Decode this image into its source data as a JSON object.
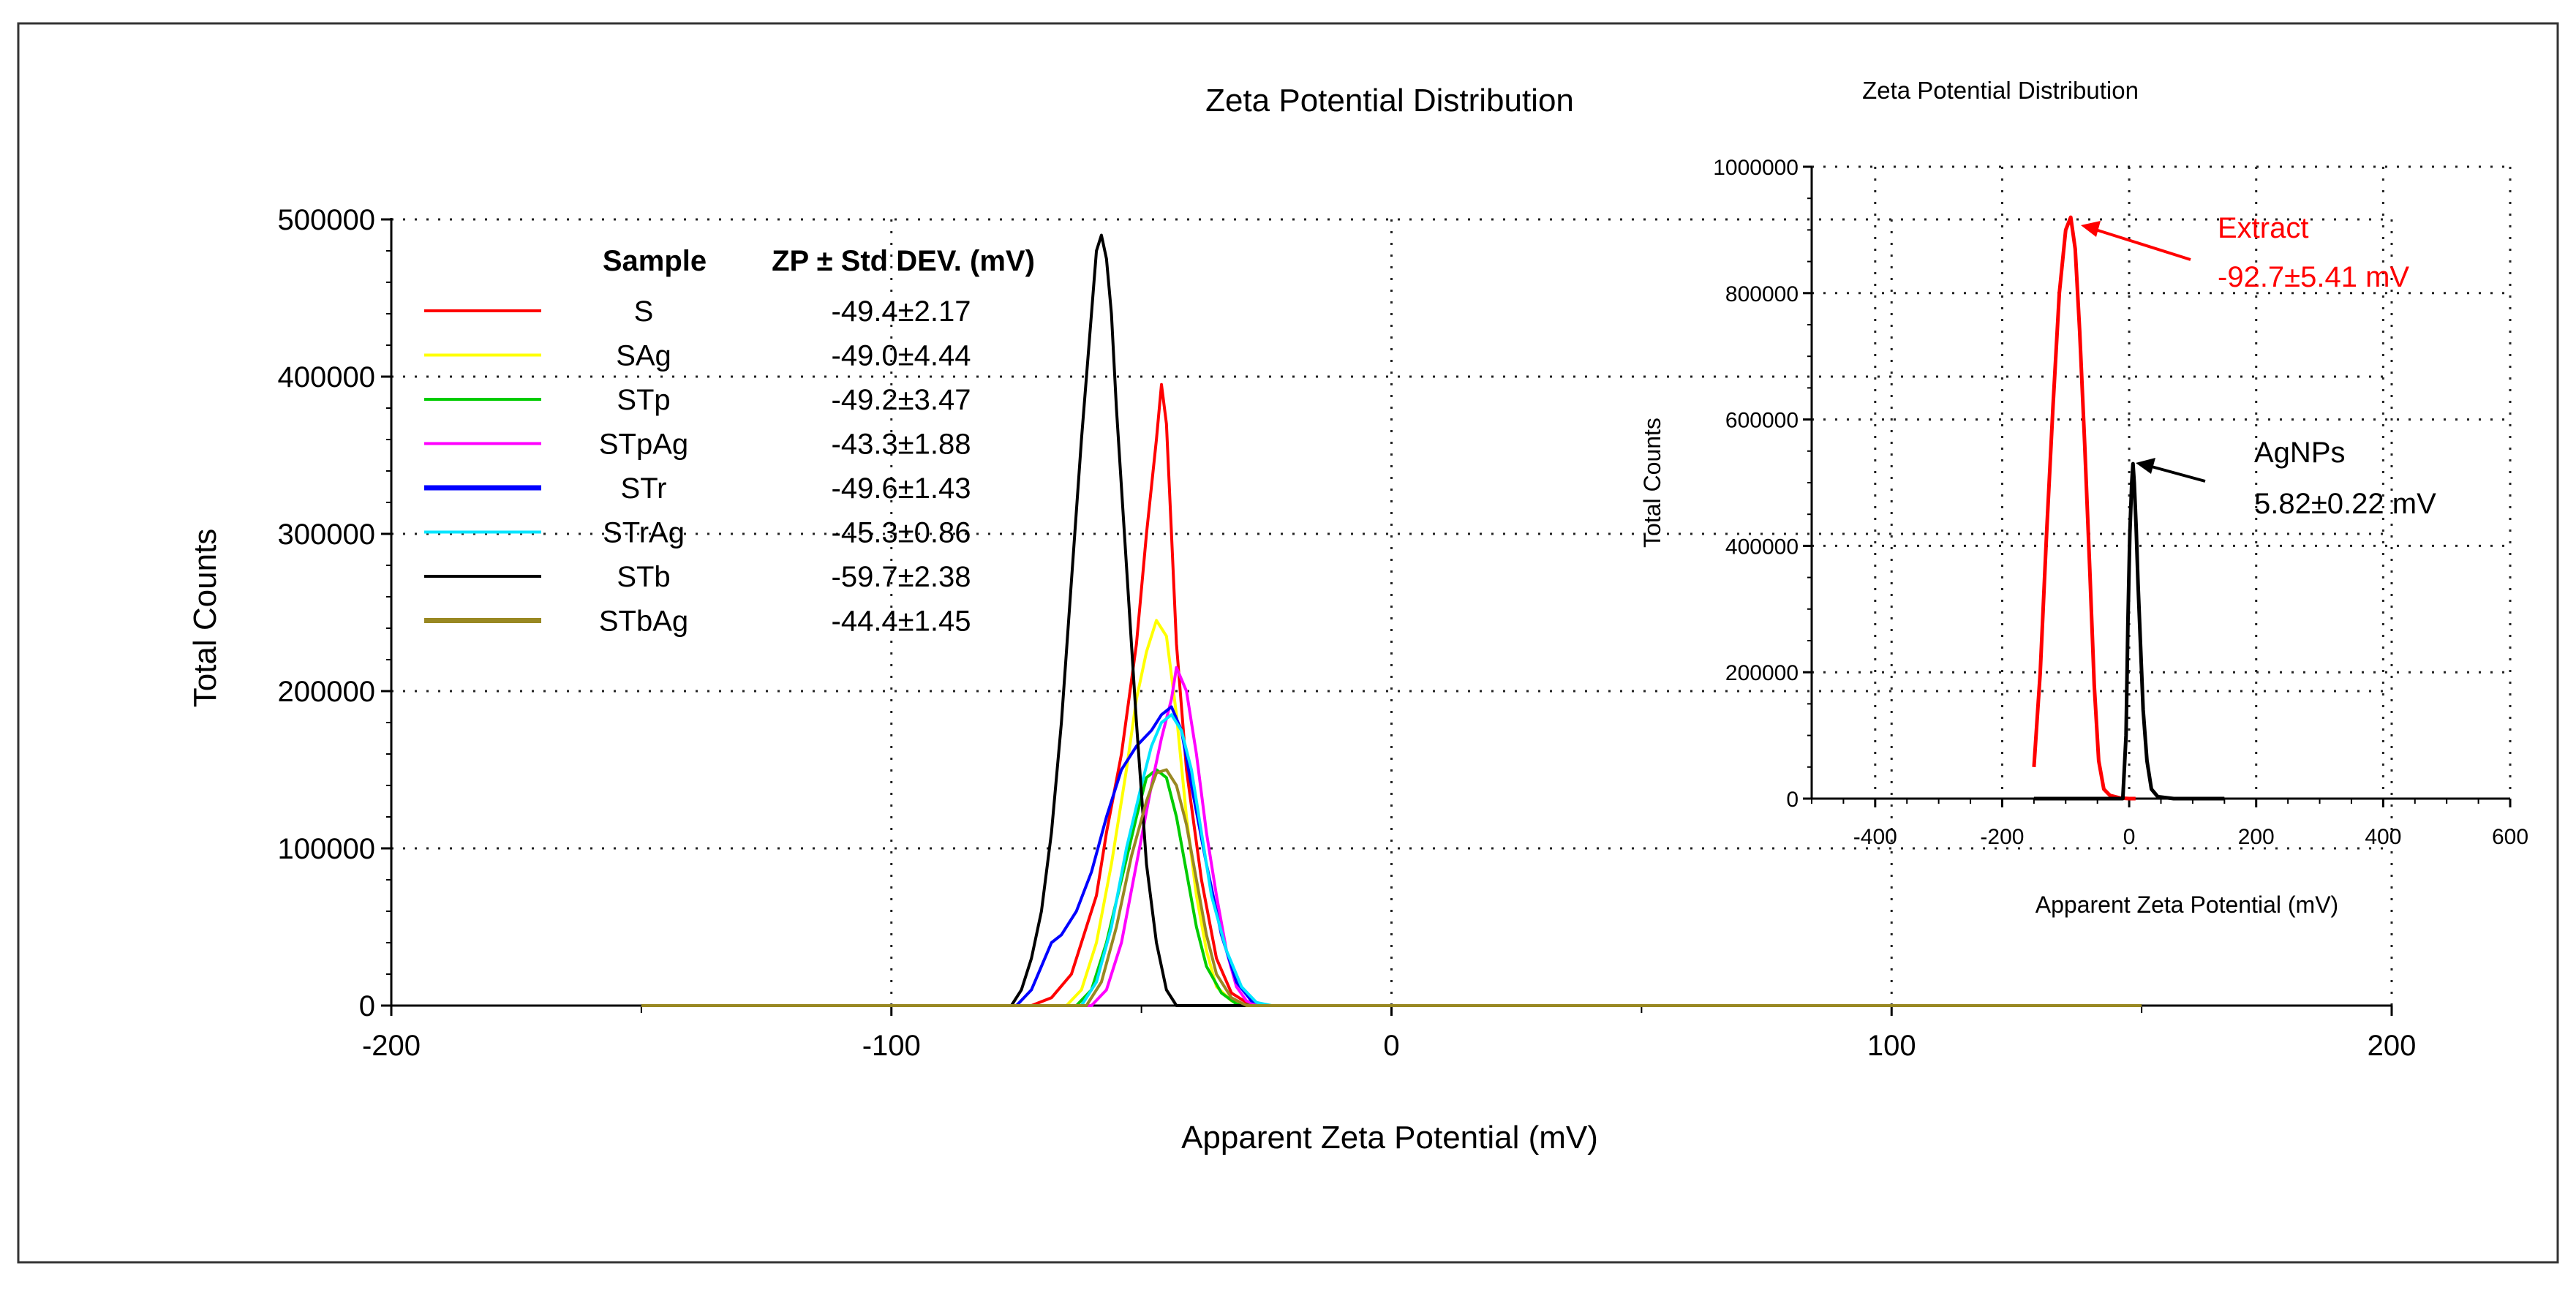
{
  "chart_data": [
    {
      "type": "line",
      "title": "Zeta Potential Distribution",
      "xlabel": "Apparent Zeta Potential (mV)",
      "ylabel": "Total Counts",
      "xlim": [
        -200,
        200
      ],
      "ylim": [
        0,
        500000
      ],
      "x_ticks": [
        -200,
        -100,
        0,
        100,
        200
      ],
      "y_ticks": [
        0,
        100000,
        200000,
        300000,
        400000,
        500000
      ],
      "legend": {
        "header_sample": "Sample",
        "header_zp": "ZP ± Std DEV. (mV)"
      },
      "series": [
        {
          "name": "S",
          "zp": "-49.4±2.17",
          "color": "#ff0000",
          "x": [
            -150,
            -72,
            -68,
            -64,
            -61,
            -59,
            -57,
            -54,
            -51,
            -49,
            -47,
            -46,
            -45,
            -44,
            -43,
            -41,
            -38,
            -35,
            -32,
            -29,
            -26,
            150
          ],
          "y": [
            0,
            0,
            5000,
            20000,
            50000,
            70000,
            110000,
            160000,
            230000,
            300000,
            360000,
            395000,
            370000,
            300000,
            230000,
            150000,
            80000,
            30000,
            8000,
            2000,
            0,
            0
          ]
        },
        {
          "name": "SAg",
          "zp": "-49.0±4.44",
          "color": "#ffff00",
          "x": [
            -150,
            -65,
            -62,
            -59,
            -56,
            -53,
            -51,
            -49,
            -47,
            -45,
            -43,
            -41,
            -39,
            -37,
            -35,
            -32,
            -29,
            -26,
            150
          ],
          "y": [
            0,
            0,
            10000,
            40000,
            90000,
            150000,
            195000,
            225000,
            245000,
            235000,
            185000,
            120000,
            70000,
            35000,
            12000,
            3000,
            0,
            0,
            0
          ]
        },
        {
          "name": "STp",
          "zp": "-49.2±3.47",
          "color": "#00cc00",
          "x": [
            -150,
            -63,
            -60,
            -57,
            -54,
            -51,
            -49,
            -47,
            -45,
            -43,
            -41,
            -39,
            -37,
            -34,
            -31,
            -28,
            150
          ],
          "y": [
            0,
            0,
            10000,
            40000,
            80000,
            120000,
            145000,
            150000,
            145000,
            120000,
            85000,
            50000,
            25000,
            8000,
            1000,
            0,
            0
          ]
        },
        {
          "name": "STpAg",
          "zp": "-43.3±1.88",
          "color": "#ff00ff",
          "x": [
            -150,
            -60,
            -57,
            -54,
            -51,
            -48,
            -46,
            -44,
            -43,
            -41,
            -39,
            -37,
            -35,
            -33,
            -31,
            -29,
            -27,
            150
          ],
          "y": [
            0,
            0,
            10000,
            40000,
            90000,
            140000,
            170000,
            195000,
            215000,
            200000,
            160000,
            110000,
            70000,
            35000,
            12000,
            3000,
            0,
            0
          ]
        },
        {
          "name": "STr",
          "zp": "-49.6±1.43",
          "color": "#0000ff",
          "x": [
            -150,
            -75,
            -72,
            -70,
            -68,
            -66,
            -63,
            -60,
            -57,
            -54,
            -51,
            -48,
            -46,
            -44,
            -42,
            -40,
            -37,
            -34,
            -31,
            -28,
            -25,
            150
          ],
          "y": [
            0,
            0,
            10000,
            25000,
            40000,
            45000,
            60000,
            85000,
            120000,
            150000,
            165000,
            175000,
            185000,
            190000,
            175000,
            140000,
            90000,
            45000,
            15000,
            3000,
            0,
            0
          ]
        },
        {
          "name": "STrAg",
          "zp": "-45.3±0.86",
          "color": "#00e5ff",
          "x": [
            -150,
            -62,
            -59,
            -56,
            -53,
            -50,
            -48,
            -46,
            -44,
            -42,
            -40,
            -38,
            -36,
            -33,
            -30,
            -27,
            -24,
            150
          ],
          "y": [
            0,
            0,
            15000,
            50000,
            100000,
            140000,
            165000,
            180000,
            185000,
            175000,
            150000,
            110000,
            70000,
            35000,
            12000,
            2000,
            0,
            0
          ]
        },
        {
          "name": "STb",
          "zp": "-59.7±2.38",
          "color": "#000000",
          "x": [
            -150,
            -76,
            -74,
            -72,
            -70,
            -68,
            -66,
            -64,
            -62,
            -60,
            -59,
            -58,
            -57,
            -56,
            -55,
            -53,
            -51,
            -49,
            -47,
            -45,
            -43,
            150
          ],
          "y": [
            0,
            0,
            10000,
            30000,
            60000,
            110000,
            180000,
            270000,
            360000,
            440000,
            480000,
            490000,
            475000,
            440000,
            380000,
            280000,
            180000,
            90000,
            40000,
            10000,
            0,
            0
          ]
        },
        {
          "name": "STbAg",
          "zp": "-44.4±1.45",
          "color": "#998822",
          "x": [
            -150,
            -61,
            -58,
            -55,
            -52,
            -49,
            -47,
            -45,
            -43,
            -41,
            -39,
            -37,
            -35,
            -32,
            -29,
            -26,
            150
          ],
          "y": [
            0,
            0,
            15000,
            50000,
            95000,
            130000,
            148000,
            150000,
            140000,
            115000,
            80000,
            45000,
            20000,
            5000,
            0,
            0,
            0
          ]
        }
      ]
    },
    {
      "type": "line",
      "title": "Zeta Potential Distribution",
      "xlabel": "Apparent Zeta Potential (mV)",
      "ylabel": "Total Counts",
      "xlim": [
        -500,
        600
      ],
      "ylim": [
        0,
        1000000
      ],
      "x_ticks": [
        -400,
        -200,
        0,
        200,
        400,
        600
      ],
      "y_ticks": [
        0,
        200000,
        400000,
        600000,
        800000,
        1000000
      ],
      "series": [
        {
          "name": "Extract",
          "color": "#ff0000",
          "x": [
            -150,
            -140,
            -130,
            -120,
            -110,
            -100,
            -92,
            -85,
            -78,
            -70,
            -62,
            -55,
            -48,
            -40,
            -30,
            -15,
            0,
            10
          ],
          "y": [
            50000,
            200000,
            420000,
            620000,
            800000,
            900000,
            920000,
            870000,
            740000,
            560000,
            360000,
            180000,
            60000,
            15000,
            5000,
            1000,
            0,
            0
          ]
        },
        {
          "name": "AgNPs",
          "color": "#000000",
          "x": [
            -150,
            -10,
            -5,
            -2,
            1,
            4,
            6,
            8,
            11,
            14,
            18,
            22,
            28,
            35,
            45,
            70,
            150
          ],
          "y": [
            0,
            0,
            100000,
            280000,
            420000,
            500000,
            530000,
            500000,
            430000,
            340000,
            240000,
            140000,
            60000,
            15000,
            3000,
            0,
            0
          ]
        }
      ],
      "annotations": [
        {
          "series": "Extract",
          "label": "Extract",
          "value": "-92.7±5.41 mV",
          "color": "#ff0000"
        },
        {
          "series": "AgNPs",
          "label": "AgNPs",
          "value": "5.82±0.22 mV",
          "color": "#000000"
        }
      ]
    }
  ]
}
